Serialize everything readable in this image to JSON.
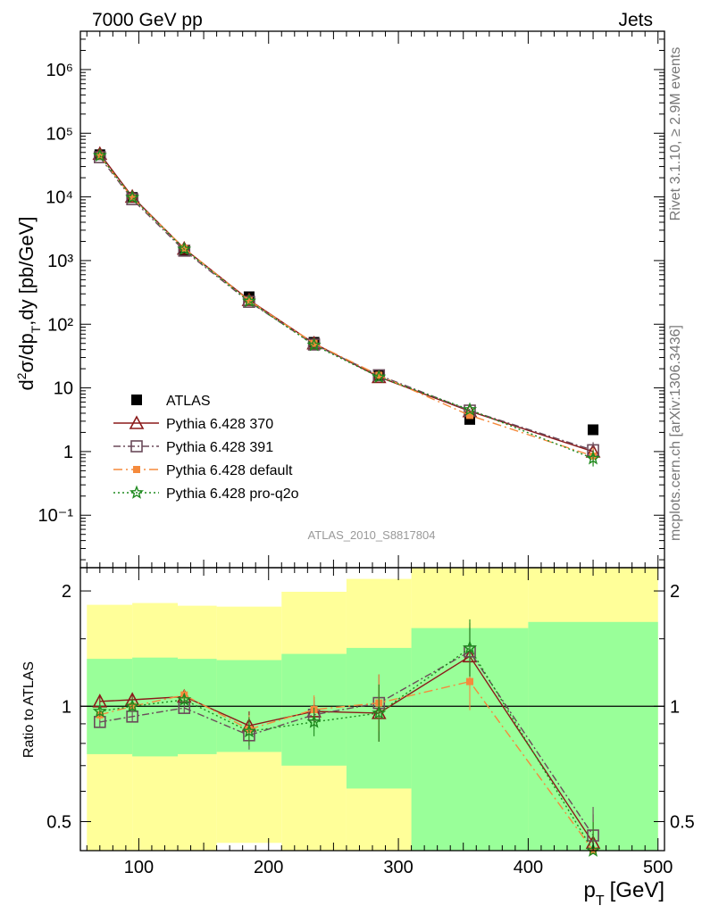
{
  "header": {
    "energy": "7000 GeV pp",
    "process": "Jets"
  },
  "side_labels": {
    "rivet": "Rivet 3.1.10, ≥ 2.9M events",
    "mcplots": "mcplots.cern.ch [arXiv:1306.3436]"
  },
  "analysis_id": "ATLAS_2010_S8817804",
  "colors": {
    "data": "#000000",
    "pythia_370": "#8b1a1a",
    "pythia_391": "#6b4a5a",
    "pythia_default": "#f58a3c",
    "pythia_proq2o": "#1f8a1f",
    "band_inner": "#99ff99",
    "band_outer": "#ffff99"
  },
  "chart_data": [
    {
      "type": "line",
      "panel": "main",
      "xlabel_main": "p",
      "xlabel_sub": "T",
      "xlabel_unit": "[GeV]",
      "ylabel": "d²σ/dp_T,dy [pb/GeV]",
      "yscale": "log",
      "ylim": [
        0.015,
        4000000
      ],
      "xlim": [
        55,
        505
      ],
      "x_ticks": [
        100,
        200,
        300,
        400,
        500
      ],
      "y_tick_labels": [
        "10⁶",
        "10⁵",
        "10⁴",
        "10³",
        "10²",
        "10",
        "1",
        "10⁻¹"
      ],
      "legend_position": "bottom-left",
      "x": [
        70,
        95,
        135,
        185,
        235,
        285,
        355,
        450
      ],
      "series": [
        {
          "name": "ATLAS",
          "key": "data",
          "marker": "square",
          "values": [
            46000,
            9800,
            1450,
            270,
            52,
            15.5,
            3.2,
            2.2
          ]
        },
        {
          "name": "Pythia 6.428 370",
          "key": "pythia_370",
          "marker": "triangle",
          "values": [
            47500,
            10100,
            1540,
            240,
            50,
            14.8,
            4.3,
            1.0
          ]
        },
        {
          "name": "Pythia 6.428 391",
          "key": "pythia_391",
          "marker": "open-square",
          "values": [
            42000,
            9200,
            1430,
            225,
            48,
            15.8,
            4.4,
            1.05
          ]
        },
        {
          "name": "Pythia 6.428 default",
          "key": "pythia_default",
          "marker": "filled-square",
          "values": [
            44000,
            9700,
            1560,
            235,
            50,
            15.8,
            3.7,
            0.85
          ]
        },
        {
          "name": "Pythia 6.428 pro-q2o",
          "key": "pythia_proq2o",
          "marker": "star",
          "values": [
            44500,
            9800,
            1510,
            230,
            47,
            14.8,
            4.55,
            0.78
          ]
        }
      ]
    },
    {
      "type": "line",
      "panel": "ratio",
      "ylabel": "Ratio to ATLAS",
      "yscale": "log",
      "ylim": [
        0.42,
        2.3
      ],
      "xlim": [
        55,
        505
      ],
      "y_tick_labels": [
        "2",
        "1",
        "0.5"
      ],
      "bins": [
        [
          60,
          95
        ],
        [
          95,
          130
        ],
        [
          130,
          160
        ],
        [
          160,
          210
        ],
        [
          210,
          260
        ],
        [
          260,
          310
        ],
        [
          310,
          400
        ],
        [
          400,
          500
        ]
      ],
      "band_inner": [
        [
          0.75,
          1.33
        ],
        [
          0.74,
          1.34
        ],
        [
          0.75,
          1.33
        ],
        [
          0.76,
          1.32
        ],
        [
          0.7,
          1.37
        ],
        [
          0.61,
          1.42
        ],
        [
          0.42,
          1.6
        ],
        [
          0.42,
          1.66
        ]
      ],
      "band_outer": [
        [
          0.42,
          1.84
        ],
        [
          0.42,
          1.86
        ],
        [
          0.42,
          1.83
        ],
        [
          0.44,
          1.82
        ],
        [
          0.42,
          1.99
        ],
        [
          0.42,
          2.15
        ],
        [
          0.42,
          2.69
        ],
        [
          0.42,
          2.83
        ]
      ],
      "x": [
        70,
        95,
        135,
        185,
        235,
        285,
        355,
        450
      ],
      "series": [
        {
          "name": "Pythia 6.428 370",
          "key": "pythia_370",
          "marker": "triangle",
          "values": [
            1.03,
            1.04,
            1.06,
            0.89,
            0.97,
            0.96,
            1.35,
            0.44
          ]
        },
        {
          "name": "Pythia 6.428 391",
          "key": "pythia_391",
          "marker": "open-square",
          "values": [
            0.91,
            0.94,
            0.99,
            0.84,
            0.95,
            1.02,
            1.39,
            0.46
          ]
        },
        {
          "name": "Pythia 6.428 default",
          "key": "pythia_default",
          "marker": "filled-square",
          "values": [
            0.95,
            1.0,
            1.07,
            0.87,
            0.98,
            1.02,
            1.16,
            0.39
          ]
        },
        {
          "name": "Pythia 6.428 pro-q2o",
          "key": "pythia_proq2o",
          "marker": "star",
          "values": [
            0.97,
            1.0,
            1.04,
            0.86,
            0.91,
            0.96,
            1.42,
            0.36
          ]
        }
      ]
    }
  ]
}
